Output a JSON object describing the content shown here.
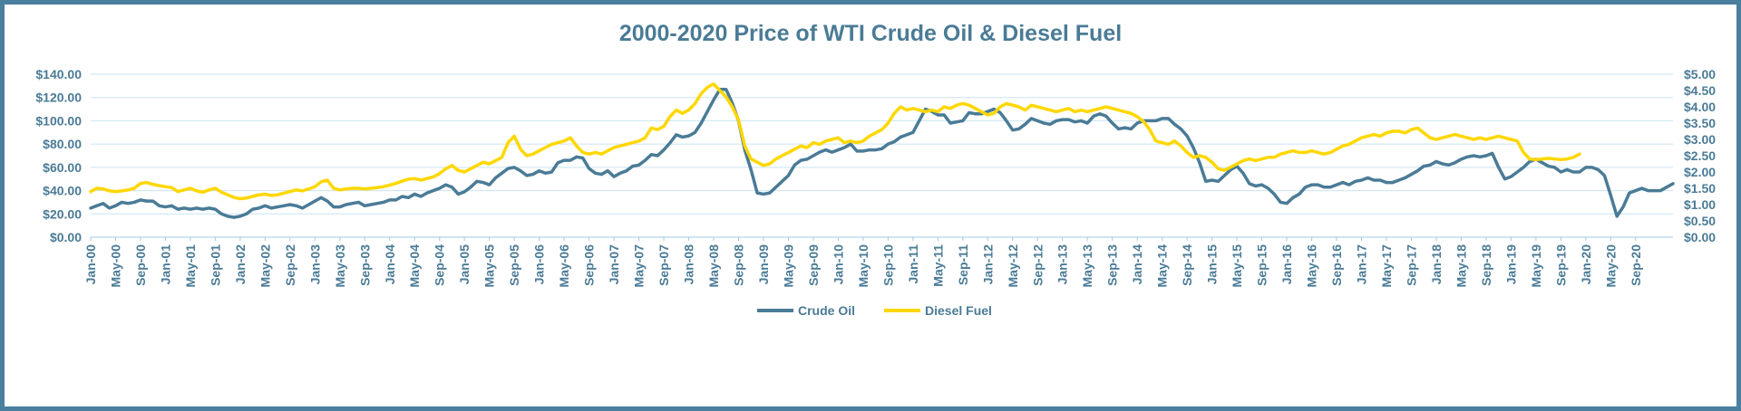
{
  "chart_data": {
    "type": "line",
    "title": "2000-2020 Price of WTI Crude Oil & Diesel Fuel",
    "xlabel": "",
    "ylabel": "",
    "x_start": "2000-01",
    "x_end": "2020-12",
    "x_tick_labels": [
      "Jan-00",
      "May-00",
      "Sep-00",
      "Jan-01",
      "May-01",
      "Sep-01",
      "Jan-02",
      "May-02",
      "Sep-02",
      "Jan-03",
      "May-03",
      "Sep-03",
      "Jan-04",
      "May-04",
      "Sep-04",
      "Jan-05",
      "May-05",
      "Sep-05",
      "Jan-06",
      "May-06",
      "Sep-06",
      "Jan-07",
      "May-07",
      "Sep-07",
      "Jan-08",
      "May-08",
      "Sep-08",
      "Jan-09",
      "May-09",
      "Sep-09",
      "Jan-10",
      "May-10",
      "Sep-10",
      "Jan-11",
      "May-11",
      "Sep-11",
      "Jan-12",
      "May-12",
      "Sep-12",
      "Jan-13",
      "May-13",
      "Sep-13",
      "Jan-14",
      "May-14",
      "Sep-14",
      "Jan-15",
      "May-15",
      "Sep-15",
      "Jan-16",
      "May-16",
      "Sep-16",
      "Jan-17",
      "May-17",
      "Sep-17",
      "Jan-18",
      "May-18",
      "Sep-18",
      "Jan-19",
      "May-19",
      "Sep-19",
      "Jan-20",
      "May-20",
      "Sep-20"
    ],
    "y_left": {
      "ylim": [
        0,
        140
      ],
      "tick_labels": [
        "$0.00",
        "$20.00",
        "$40.00",
        "$60.00",
        "$80.00",
        "$100.00",
        "$120.00",
        "$140.00"
      ]
    },
    "y_right": {
      "ylim": [
        0,
        5
      ],
      "tick_labels": [
        "$0.00",
        "$0.50",
        "$1.00",
        "$1.50",
        "$2.00",
        "$2.50",
        "$3.00",
        "$3.50",
        "$4.00",
        "$4.50",
        "$5.00"
      ]
    },
    "grid": true,
    "legend_position": "bottom",
    "series": [
      {
        "name": "Crude Oil",
        "axis": "left",
        "color": "#4a7b96",
        "values": [
          25,
          27,
          29,
          25,
          27,
          30,
          29,
          30,
          32,
          31,
          31,
          27,
          26,
          27,
          24,
          25,
          24,
          25,
          24,
          25,
          24,
          20,
          18,
          17,
          18,
          20,
          24,
          25,
          27,
          25,
          26,
          27,
          28,
          27,
          25,
          28,
          31,
          34,
          31,
          26,
          26,
          28,
          29,
          30,
          27,
          28,
          29,
          30,
          32,
          32,
          35,
          34,
          37,
          35,
          38,
          40,
          42,
          45,
          43,
          37,
          39,
          43,
          48,
          47,
          45,
          51,
          55,
          59,
          60,
          57,
          53,
          54,
          57,
          55,
          56,
          64,
          66,
          66,
          69,
          68,
          59,
          55,
          54,
          57,
          52,
          55,
          57,
          61,
          62,
          66,
          71,
          70,
          75,
          81,
          88,
          86,
          87,
          90,
          98,
          108,
          118,
          127,
          127,
          115,
          100,
          75,
          58,
          38,
          37,
          38,
          43,
          48,
          53,
          62,
          66,
          67,
          70,
          73,
          75,
          73,
          75,
          77,
          80,
          74,
          74,
          75,
          75,
          76,
          80,
          82,
          86,
          88,
          90,
          100,
          110,
          108,
          105,
          105,
          98,
          99,
          100,
          107,
          106,
          106,
          108,
          110,
          107,
          100,
          92,
          93,
          97,
          102,
          100,
          98,
          97,
          100,
          101,
          101,
          99,
          100,
          98,
          104,
          106,
          104,
          98,
          93,
          94,
          93,
          98,
          100,
          100,
          100,
          102,
          102,
          97,
          93,
          87,
          77,
          64,
          48,
          49,
          48,
          53,
          58,
          61,
          55,
          46,
          44,
          45,
          42,
          37,
          30,
          29,
          34,
          37,
          43,
          45,
          45,
          43,
          43,
          45,
          47,
          45,
          48,
          49,
          51,
          49,
          49,
          47,
          47,
          49,
          51,
          54,
          57,
          61,
          62,
          65,
          63,
          62,
          64,
          67,
          69,
          70,
          69,
          70,
          72,
          60,
          50,
          52,
          56,
          60,
          65,
          67,
          64,
          61,
          60,
          56,
          58,
          56,
          56,
          60,
          60,
          58,
          53,
          36,
          18,
          26,
          38,
          40,
          42,
          40,
          40,
          40,
          43,
          46
        ]
      },
      {
        "name": "Diesel Fuel",
        "axis": "right",
        "color": "#ffd700",
        "values": [
          1.4,
          1.5,
          1.48,
          1.42,
          1.4,
          1.42,
          1.45,
          1.5,
          1.65,
          1.68,
          1.62,
          1.58,
          1.55,
          1.52,
          1.4,
          1.45,
          1.5,
          1.42,
          1.38,
          1.45,
          1.5,
          1.38,
          1.3,
          1.22,
          1.18,
          1.2,
          1.25,
          1.3,
          1.32,
          1.28,
          1.3,
          1.35,
          1.4,
          1.45,
          1.42,
          1.48,
          1.55,
          1.7,
          1.75,
          1.5,
          1.45,
          1.48,
          1.5,
          1.5,
          1.48,
          1.5,
          1.52,
          1.55,
          1.6,
          1.65,
          1.72,
          1.78,
          1.8,
          1.75,
          1.8,
          1.85,
          1.95,
          2.1,
          2.2,
          2.05,
          2.0,
          2.1,
          2.2,
          2.3,
          2.25,
          2.35,
          2.45,
          2.9,
          3.1,
          2.7,
          2.5,
          2.55,
          2.65,
          2.75,
          2.85,
          2.9,
          2.95,
          3.05,
          2.8,
          2.6,
          2.55,
          2.6,
          2.55,
          2.65,
          2.75,
          2.8,
          2.85,
          2.9,
          2.95,
          3.05,
          3.35,
          3.3,
          3.4,
          3.7,
          3.9,
          3.8,
          3.9,
          4.1,
          4.4,
          4.6,
          4.7,
          4.5,
          4.3,
          4.0,
          3.6,
          2.8,
          2.4,
          2.3,
          2.2,
          2.25,
          2.4,
          2.5,
          2.6,
          2.7,
          2.8,
          2.75,
          2.9,
          2.85,
          2.95,
          3.0,
          3.05,
          2.9,
          2.95,
          2.9,
          2.95,
          3.1,
          3.2,
          3.3,
          3.5,
          3.8,
          4.0,
          3.9,
          3.95,
          3.9,
          3.85,
          3.9,
          3.85,
          4.0,
          3.95,
          4.05,
          4.1,
          4.05,
          3.95,
          3.85,
          3.75,
          3.8,
          4.0,
          4.1,
          4.05,
          4.0,
          3.9,
          4.05,
          4.0,
          3.95,
          3.9,
          3.85,
          3.9,
          3.95,
          3.85,
          3.9,
          3.85,
          3.9,
          3.95,
          4.0,
          3.95,
          3.9,
          3.85,
          3.8,
          3.7,
          3.55,
          3.3,
          2.95,
          2.9,
          2.85,
          2.95,
          2.8,
          2.6,
          2.45,
          2.5,
          2.45,
          2.3,
          2.1,
          2.05,
          2.15,
          2.25,
          2.35,
          2.4,
          2.35,
          2.4,
          2.45,
          2.45,
          2.55,
          2.6,
          2.65,
          2.6,
          2.6,
          2.65,
          2.6,
          2.55,
          2.6,
          2.7,
          2.8,
          2.85,
          2.95,
          3.05,
          3.1,
          3.15,
          3.1,
          3.2,
          3.25,
          3.25,
          3.2,
          3.3,
          3.35,
          3.2,
          3.05,
          3.0,
          3.05,
          3.1,
          3.15,
          3.1,
          3.05,
          3.0,
          3.05,
          3.0,
          3.05,
          3.1,
          3.05,
          3.0,
          2.95,
          2.6,
          2.4,
          2.38,
          2.4,
          2.42,
          2.4,
          2.38,
          2.4,
          2.45,
          2.55
        ]
      }
    ]
  }
}
